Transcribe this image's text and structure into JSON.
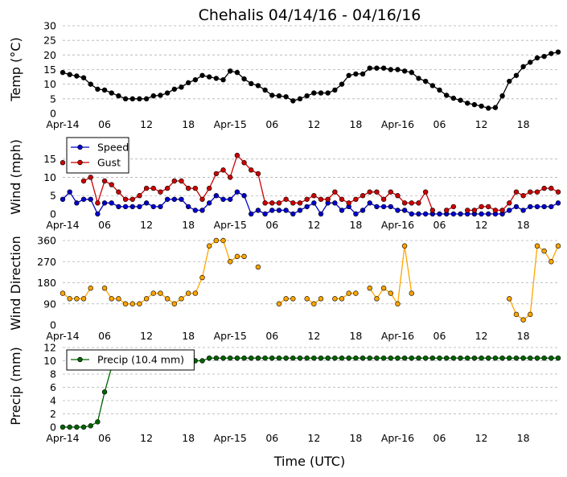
{
  "chart_data": {
    "title": "Chehalis 04/14/16 - 04/16/16",
    "xlabel": "Time (UTC)",
    "x_tick_labels": [
      "Apr-14",
      "06",
      "12",
      "18",
      "Apr-15",
      "06",
      "12",
      "18",
      "Apr-16",
      "06",
      "12",
      "18"
    ],
    "x_unit": "hours since Apr-14 00:00 UTC",
    "x_range": [
      0,
      71
    ],
    "panels": [
      {
        "type": "line",
        "ylabel": "Temp (°C)",
        "ylim": [
          0,
          30
        ],
        "yticks": [
          0,
          5,
          10,
          15,
          20,
          25,
          30
        ],
        "grid": true,
        "series": [
          {
            "color": "#000000",
            "values": [
              14,
              13.3,
              12.8,
              12.2,
              10,
              8.3,
              8,
              7,
              6,
              5,
              5,
              5,
              5,
              6,
              6.2,
              7,
              8.3,
              9,
              10.5,
              11.5,
              13,
              12.5,
              12,
              11.5,
              14.5,
              14,
              11.8,
              10.2,
              9.5,
              8,
              6.2,
              6,
              5.7,
              4.3,
              5,
              6,
              7,
              7,
              7,
              8,
              10,
              13,
              13.5,
              13.5,
              15.5,
              15.5,
              15.5,
              15,
              15,
              14.5,
              14,
              12,
              11,
              9.5,
              8,
              6.2,
              5.2,
              4.5,
              3.5,
              3,
              2.5,
              1.8,
              2,
              6,
              11,
              13,
              16,
              17.5,
              19,
              19.5,
              20.5,
              21
            ]
          }
        ]
      },
      {
        "type": "line",
        "ylabel": "Wind (mph)",
        "ylim": [
          0,
          18
        ],
        "yticks": [
          0,
          5,
          10,
          15
        ],
        "grid": true,
        "legend": "top-left",
        "series": [
          {
            "name": "Speed",
            "color": "#0000cc",
            "values": [
              4,
              6,
              3,
              4,
              4,
              0,
              3,
              3,
              2,
              2,
              2,
              2,
              3,
              2,
              2,
              4,
              4,
              4,
              2,
              1,
              1,
              3,
              5,
              4,
              4,
              6,
              5,
              0,
              1,
              0,
              1,
              1,
              1,
              0,
              1,
              2,
              3,
              0,
              3,
              3,
              1,
              2,
              0,
              1,
              3,
              2,
              2,
              2,
              1,
              1,
              0,
              0,
              0,
              0,
              0,
              0,
              0,
              0,
              0,
              0,
              0,
              0,
              0,
              0,
              1,
              2,
              1,
              2,
              2,
              2,
              2,
              3
            ]
          },
          {
            "name": "Gust",
            "color": "#cc0000",
            "values": [
              14,
              null,
              null,
              9,
              10,
              3,
              9,
              8,
              6,
              4,
              4,
              5,
              7,
              7,
              6,
              7,
              9,
              9,
              7,
              7,
              4,
              7,
              11,
              12,
              10,
              16,
              14,
              12,
              11,
              3,
              3,
              3,
              4,
              3,
              3,
              4,
              5,
              4,
              4,
              6,
              4,
              3,
              4,
              5,
              6,
              6,
              4,
              6,
              5,
              3,
              3,
              3,
              6,
              1,
              null,
              1,
              2,
              null,
              1,
              1,
              2,
              2,
              1,
              1,
              3,
              6,
              5,
              6,
              6,
              7,
              7,
              6
            ]
          }
        ]
      },
      {
        "type": "scatter",
        "ylabel": "Wind Direction",
        "ylim": [
          0,
          360
        ],
        "yticks": [
          0,
          90,
          180,
          270,
          360
        ],
        "grid": true,
        "series": [
          {
            "color": "#ffa500",
            "values": [
              135,
              112,
              112,
              112,
              157,
              null,
              157,
              112,
              112,
              90,
              90,
              90,
              112,
              135,
              135,
              112,
              90,
              112,
              135,
              135,
              202,
              337,
              360,
              360,
              270,
              292,
              292,
              null,
              247,
              null,
              null,
              90,
              112,
              112,
              null,
              112,
              90,
              112,
              null,
              112,
              112,
              135,
              135,
              null,
              157,
              112,
              157,
              135,
              90,
              337,
              135,
              null,
              null,
              null,
              null,
              null,
              null,
              null,
              null,
              null,
              null,
              null,
              null,
              null,
              112,
              45,
              22,
              45,
              337,
              315,
              270,
              337
            ]
          }
        ]
      },
      {
        "type": "line",
        "ylabel": "Precip (mm)",
        "ylim": [
          0,
          12
        ],
        "yticks": [
          0,
          2,
          4,
          6,
          8,
          10,
          12
        ],
        "grid": true,
        "legend": "top-left",
        "series": [
          {
            "name": "Precip (10.4 mm)",
            "color": "#006400",
            "values": [
              0,
              0,
              0,
              0,
              0.2,
              0.8,
              5.3,
              9,
              9,
              9,
              9,
              9,
              9,
              9.4,
              9.7,
              10,
              10,
              10,
              10,
              10,
              10,
              10.4,
              10.4,
              10.4,
              10.4,
              10.4,
              10.4,
              10.4,
              10.4,
              10.4,
              10.4,
              10.4,
              10.4,
              10.4,
              10.4,
              10.4,
              10.4,
              10.4,
              10.4,
              10.4,
              10.4,
              10.4,
              10.4,
              10.4,
              10.4,
              10.4,
              10.4,
              10.4,
              10.4,
              10.4,
              10.4,
              10.4,
              10.4,
              10.4,
              10.4,
              10.4,
              10.4,
              10.4,
              10.4,
              10.4,
              10.4,
              10.4,
              10.4,
              10.4,
              10.4,
              10.4,
              10.4,
              10.4,
              10.4,
              10.4,
              10.4,
              10.4
            ]
          }
        ]
      }
    ]
  }
}
